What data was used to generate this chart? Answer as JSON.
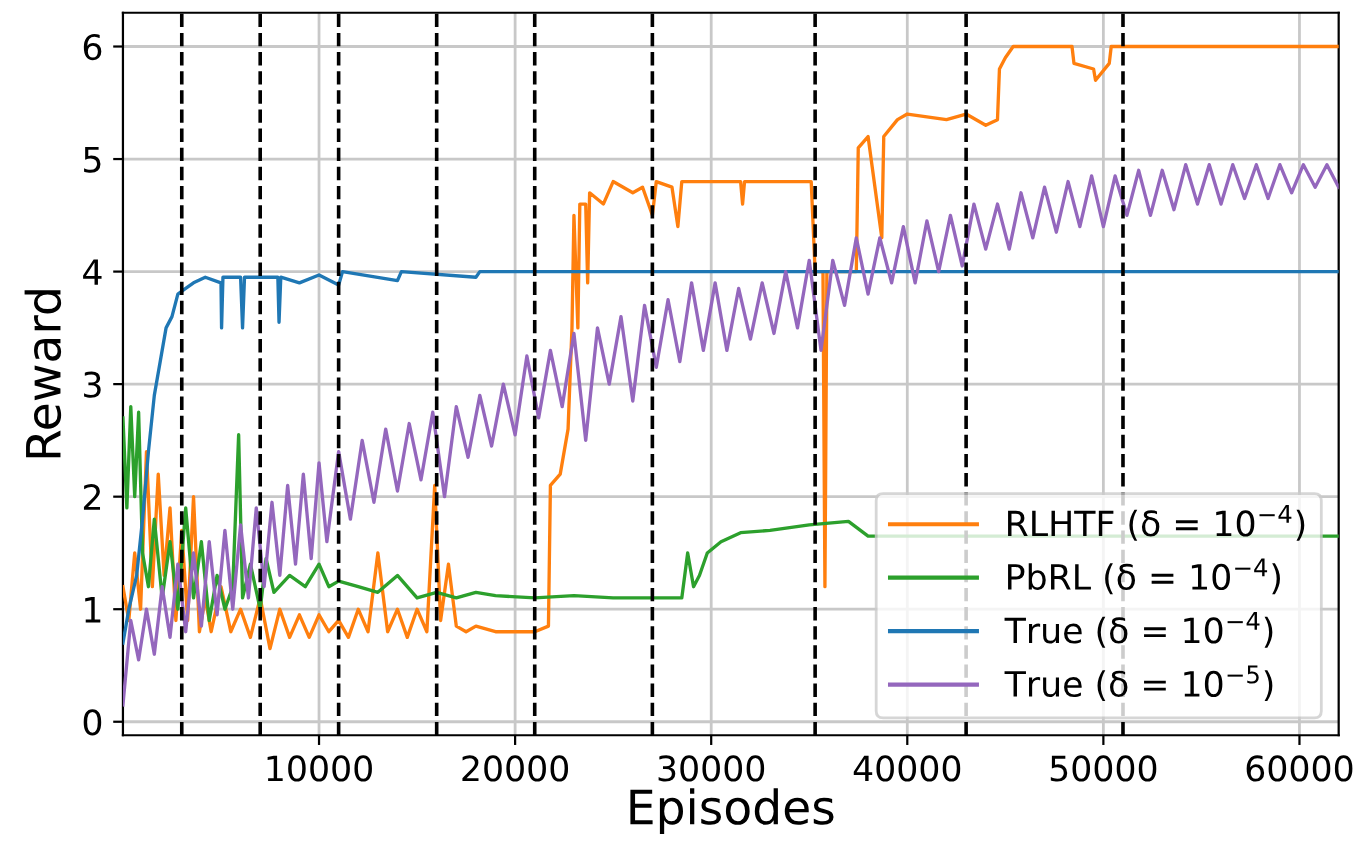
{
  "chart_data": {
    "type": "line",
    "xlabel": "Episodes",
    "ylabel": "Reward",
    "xlim": [
      0,
      62000
    ],
    "ylim": [
      -0.12,
      6.3
    ],
    "xticks": [
      10000,
      20000,
      30000,
      40000,
      50000,
      60000
    ],
    "yticks": [
      0,
      1,
      2,
      3,
      4,
      5,
      6
    ],
    "grid": true,
    "legend": "bottom right",
    "line_style": "solid",
    "ref_lines": [
      {
        "axis": "x",
        "value": 3000,
        "color": "#000000",
        "line_style": "dashed"
      },
      {
        "axis": "x",
        "value": 7000,
        "color": "#000000",
        "line_style": "dashed"
      },
      {
        "axis": "x",
        "value": 11000,
        "color": "#000000",
        "line_style": "dashed"
      },
      {
        "axis": "x",
        "value": 16000,
        "color": "#000000",
        "line_style": "dashed"
      },
      {
        "axis": "x",
        "value": 21000,
        "color": "#000000",
        "line_style": "dashed"
      },
      {
        "axis": "x",
        "value": 27000,
        "color": "#000000",
        "line_style": "dashed"
      },
      {
        "axis": "x",
        "value": 35300,
        "color": "#000000",
        "line_style": "dashed"
      },
      {
        "axis": "x",
        "value": 43000,
        "color": "#000000",
        "line_style": "dashed"
      },
      {
        "axis": "x",
        "value": 51000,
        "color": "#000000",
        "line_style": "dashed"
      }
    ],
    "series": [
      {
        "name": "RLHTF (δ = 10$^{−4}$)",
        "color": "#ff7f0e",
        "x": [
          0,
          300,
          600,
          900,
          1200,
          1500,
          1800,
          2100,
          2400,
          2700,
          3000,
          3300,
          3600,
          3900,
          4200,
          4500,
          5000,
          5500,
          6000,
          6500,
          7000,
          7500,
          8000,
          8500,
          9000,
          9500,
          10000,
          10500,
          11000,
          11500,
          12000,
          12500,
          13000,
          13500,
          14000,
          14500,
          15000,
          15500,
          15900,
          16200,
          16600,
          17000,
          17500,
          18000,
          19000,
          20000,
          21000,
          21700,
          21800,
          22300,
          22700,
          22900,
          23000,
          23200,
          23300,
          23600,
          23700,
          23800,
          24500,
          25000,
          26000,
          26500,
          27000,
          27200,
          28000,
          28300,
          28500,
          30000,
          31500,
          31600,
          31700,
          35100,
          35300,
          35700,
          35800,
          35900,
          37400,
          37500,
          38000,
          38700,
          38800,
          39500,
          40000,
          42000,
          43000,
          44000,
          44600,
          44700,
          45000,
          45400,
          48400,
          48500,
          49500,
          49600,
          50300,
          50400,
          62000
        ],
        "values": [
          1.2,
          0.9,
          1.5,
          1.0,
          2.4,
          1.2,
          2.2,
          1.3,
          1.9,
          0.9,
          1.7,
          0.9,
          2.0,
          0.8,
          1.1,
          0.8,
          1.2,
          0.8,
          1.0,
          0.75,
          1.1,
          0.65,
          1.0,
          0.75,
          0.95,
          0.75,
          0.95,
          0.8,
          0.9,
          0.75,
          1.0,
          0.8,
          1.5,
          0.8,
          1.0,
          0.75,
          1.0,
          0.8,
          2.1,
          0.9,
          1.4,
          0.85,
          0.8,
          0.85,
          0.8,
          0.8,
          0.8,
          0.85,
          2.1,
          2.2,
          2.6,
          3.5,
          4.5,
          3.5,
          4.6,
          4.6,
          3.9,
          4.7,
          4.6,
          4.8,
          4.7,
          4.75,
          4.5,
          4.8,
          4.75,
          4.4,
          4.8,
          4.8,
          4.8,
          4.6,
          4.8,
          4.8,
          4.0,
          4.0,
          1.2,
          4.0,
          4.0,
          5.1,
          5.2,
          4.3,
          5.2,
          5.35,
          5.4,
          5.35,
          5.4,
          5.3,
          5.35,
          5.8,
          5.9,
          6.0,
          6.0,
          5.85,
          5.8,
          5.7,
          5.85,
          6.0,
          6.0
        ]
      },
      {
        "name": "PbRL (δ = 10$^{−4}$)",
        "color": "#2ca02c",
        "x": [
          0,
          200,
          400,
          600,
          800,
          1000,
          1300,
          1600,
          2000,
          2400,
          2800,
          3200,
          3600,
          4000,
          4400,
          4800,
          5200,
          5600,
          5900,
          6100,
          6500,
          7000,
          7300,
          7700,
          8500,
          9300,
          10000,
          10500,
          11000,
          12000,
          13000,
          14000,
          15000,
          16000,
          17000,
          18000,
          19000,
          21000,
          23000,
          25000,
          28500,
          28800,
          29100,
          29400,
          29800,
          30500,
          31500,
          33000,
          35000,
          37000,
          38000,
          62000
        ],
        "values": [
          2.7,
          1.9,
          2.8,
          2.0,
          2.75,
          1.5,
          1.2,
          1.8,
          1.1,
          1.6,
          1.0,
          1.9,
          1.1,
          1.6,
          0.9,
          1.3,
          1.0,
          1.2,
          2.55,
          1.1,
          1.4,
          1.0,
          1.45,
          1.15,
          1.3,
          1.2,
          1.4,
          1.2,
          1.25,
          1.2,
          1.15,
          1.3,
          1.1,
          1.15,
          1.1,
          1.15,
          1.12,
          1.1,
          1.12,
          1.1,
          1.1,
          1.5,
          1.2,
          1.3,
          1.5,
          1.6,
          1.68,
          1.7,
          1.75,
          1.78,
          1.65,
          1.65
        ]
      },
      {
        "name": "True (δ = 10$^{−4}$)",
        "color": "#1f77b4",
        "x": [
          0,
          300,
          700,
          1000,
          1300,
          1600,
          1900,
          2200,
          2500,
          2800,
          3200,
          3600,
          4200,
          5000,
          5030,
          5100,
          6000,
          6100,
          6200,
          7900,
          7960,
          8050,
          9000,
          10000,
          11000,
          11200,
          14000,
          14200,
          18000,
          18200,
          62000
        ],
        "values": [
          0.7,
          1.0,
          1.3,
          1.8,
          2.4,
          2.9,
          3.2,
          3.5,
          3.6,
          3.8,
          3.85,
          3.9,
          3.95,
          3.9,
          3.5,
          3.95,
          3.95,
          3.5,
          3.95,
          3.95,
          3.55,
          3.95,
          3.9,
          3.97,
          3.88,
          4.0,
          3.92,
          4.0,
          3.95,
          4.0,
          4.0
        ]
      },
      {
        "name": "True (δ = 10$^{−5}$)",
        "color": "#9467bd",
        "x": [
          0,
          400,
          800,
          1200,
          1600,
          2000,
          2400,
          2800,
          3200,
          3600,
          4000,
          4400,
          4800,
          5200,
          5600,
          6000,
          6400,
          6800,
          7200,
          7600,
          8000,
          8400,
          8800,
          9200,
          9600,
          10000,
          10400,
          11000,
          11600,
          12200,
          12800,
          13400,
          14000,
          14600,
          15200,
          15800,
          16400,
          17000,
          17600,
          18200,
          18800,
          19400,
          20000,
          20600,
          21200,
          21800,
          22400,
          23000,
          23600,
          24200,
          24800,
          25400,
          26000,
          26600,
          27200,
          27800,
          28400,
          29000,
          29600,
          30200,
          30800,
          31400,
          32000,
          32600,
          33200,
          33800,
          34400,
          35000,
          35600,
          36200,
          36800,
          37400,
          38000,
          38600,
          39200,
          39800,
          40400,
          41000,
          41600,
          42200,
          42800,
          43400,
          44000,
          44600,
          45200,
          45800,
          46400,
          47000,
          47600,
          48200,
          48800,
          49400,
          50000,
          50600,
          51200,
          51800,
          52400,
          53000,
          53600,
          54200,
          54800,
          55400,
          56000,
          56600,
          57200,
          57800,
          58400,
          59000,
          59600,
          60200,
          60800,
          61400,
          62000
        ],
        "values": [
          0.15,
          0.9,
          0.55,
          1.0,
          0.6,
          1.2,
          0.75,
          1.4,
          0.8,
          1.5,
          0.85,
          1.6,
          0.95,
          1.7,
          1.0,
          1.75,
          1.1,
          1.9,
          1.2,
          1.95,
          1.3,
          2.1,
          1.4,
          2.2,
          1.45,
          2.3,
          1.6,
          2.4,
          1.8,
          2.5,
          1.95,
          2.6,
          2.05,
          2.65,
          2.15,
          2.75,
          2.0,
          2.8,
          2.35,
          2.9,
          2.45,
          3.0,
          2.55,
          3.25,
          2.7,
          3.3,
          2.8,
          3.45,
          2.5,
          3.5,
          3.0,
          3.6,
          2.85,
          3.7,
          3.15,
          3.75,
          3.2,
          3.9,
          3.3,
          3.9,
          3.3,
          3.85,
          3.4,
          3.9,
          3.45,
          4.0,
          3.5,
          4.1,
          3.3,
          4.1,
          3.7,
          4.3,
          3.8,
          4.3,
          3.9,
          4.4,
          3.9,
          4.45,
          4.0,
          4.5,
          4.05,
          4.6,
          4.2,
          4.6,
          4.2,
          4.7,
          4.3,
          4.75,
          4.35,
          4.8,
          4.4,
          4.85,
          4.4,
          4.85,
          4.5,
          4.9,
          4.5,
          4.9,
          4.55,
          4.95,
          4.6,
          4.95,
          4.6,
          4.95,
          4.65,
          4.95,
          4.65,
          4.95,
          4.7,
          4.95,
          4.75,
          4.95,
          4.75
        ]
      }
    ]
  }
}
